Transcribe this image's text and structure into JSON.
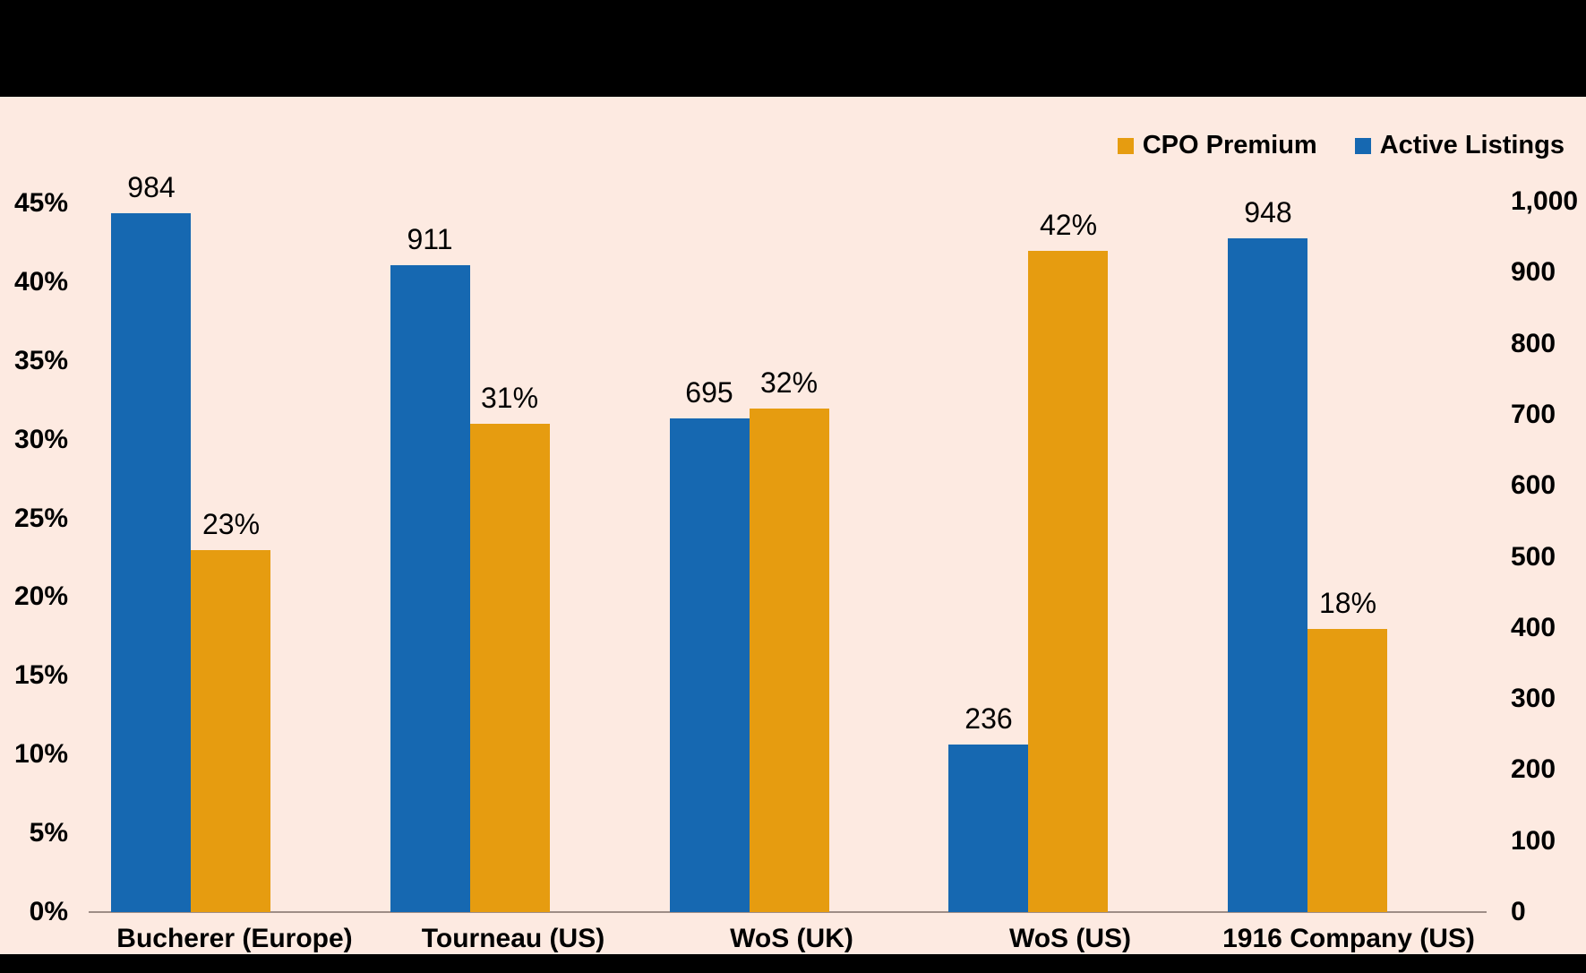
{
  "colors": {
    "background": "#FDEAE1",
    "band": "#000000",
    "blue": "#1668B1",
    "orange": "#E69C10",
    "axis_line": "#9E8D87",
    "text": "#000000"
  },
  "chart_data": {
    "type": "bar",
    "title": "",
    "categories": [
      "Bucherer (Europe)",
      "Tourneau (US)",
      "WoS (UK)",
      "WoS (US)",
      "1916 Company (US)"
    ],
    "series": [
      {
        "name": "Active Listings",
        "axis": "right",
        "color_key": "blue",
        "values": [
          984,
          911,
          695,
          236,
          948
        ],
        "labels": [
          "984",
          "911",
          "695",
          "236",
          "948"
        ]
      },
      {
        "name": "CPO Premium",
        "axis": "left",
        "color_key": "orange",
        "values": [
          23,
          31,
          32,
          42,
          18
        ],
        "labels": [
          "23%",
          "31%",
          "32%",
          "42%",
          "18%"
        ]
      }
    ],
    "left_axis": {
      "min": 0,
      "max": 45,
      "step": 5,
      "tick_labels": [
        "0%",
        "5%",
        "10%",
        "15%",
        "20%",
        "25%",
        "30%",
        "35%",
        "40%",
        "45%"
      ],
      "tick_values": [
        0,
        5,
        10,
        15,
        20,
        25,
        30,
        35,
        40,
        45
      ]
    },
    "right_axis": {
      "min": 0,
      "max": 1000,
      "step": 100,
      "tick_labels": [
        "0",
        "100",
        "200",
        "300",
        "400",
        "500",
        "600",
        "700",
        "800",
        "900",
        "1,000"
      ],
      "tick_values": [
        0,
        100,
        200,
        300,
        400,
        500,
        600,
        700,
        800,
        900,
        1000
      ]
    },
    "legend": [
      {
        "label": "CPO Premium",
        "color_key": "orange"
      },
      {
        "label": "Active Listings",
        "color_key": "blue"
      }
    ],
    "legend_position": "top-right",
    "grid": false
  }
}
